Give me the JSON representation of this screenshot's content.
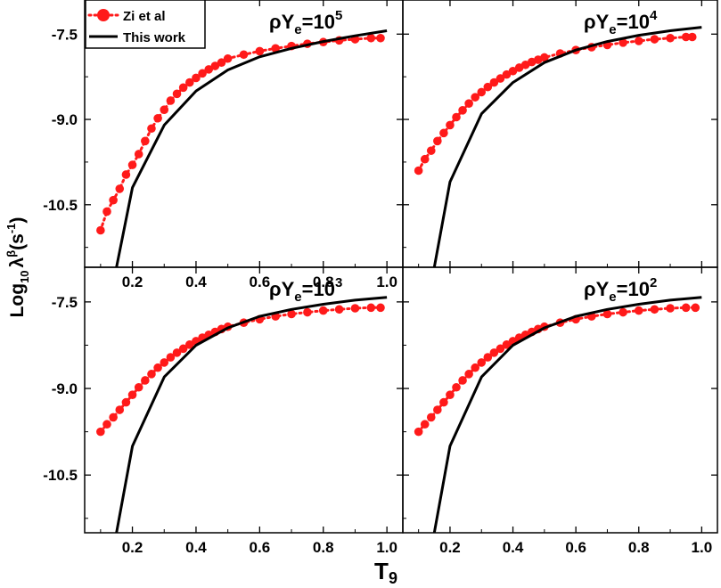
{
  "figure": {
    "xlabel_main": "T",
    "xlabel_sub": "9",
    "ylabel_main": "Log",
    "ylabel_sub": "10",
    "ylabel_symbol": "λ",
    "ylabel_sup": "β",
    "ylabel_unit_open": "(s",
    "ylabel_unit_sup": "-1",
    "ylabel_unit_close": ")",
    "colors": {
      "zi": "#ff1a1a",
      "this_work": "#000000",
      "frame": "#000000"
    }
  },
  "legend": {
    "placement": "top-left of first panel",
    "entries": [
      {
        "label": "Zi et al",
        "style": "red dotted line with circles"
      },
      {
        "label": "This work",
        "style": "black solid line"
      }
    ]
  },
  "chart_data": [
    {
      "type": "line",
      "panel": "top-left",
      "label_prefix": "ρY",
      "label_sub": "e",
      "label_mid": "=10",
      "label_sup": "5",
      "xlim": [
        0.05,
        1.05
      ],
      "ylim": [
        -11.6,
        -6.9
      ],
      "xticks": [
        "0.2",
        "0.4",
        "0.6",
        "0.8",
        "1.0"
      ],
      "yticks": [
        "-7.5",
        "-9.0",
        "-10.5"
      ],
      "series": [
        {
          "name": "Zi et al",
          "x": [
            0.1,
            0.12,
            0.14,
            0.16,
            0.18,
            0.2,
            0.22,
            0.24,
            0.26,
            0.28,
            0.3,
            0.32,
            0.34,
            0.36,
            0.38,
            0.4,
            0.42,
            0.44,
            0.46,
            0.48,
            0.5,
            0.55,
            0.6,
            0.65,
            0.7,
            0.75,
            0.8,
            0.85,
            0.9,
            0.95,
            0.98
          ],
          "y": [
            -10.95,
            -10.62,
            -10.42,
            -10.22,
            -9.97,
            -9.8,
            -9.61,
            -9.38,
            -9.16,
            -8.98,
            -8.83,
            -8.67,
            -8.55,
            -8.44,
            -8.35,
            -8.27,
            -8.19,
            -8.12,
            -8.06,
            -8.0,
            -7.93,
            -7.86,
            -7.8,
            -7.75,
            -7.71,
            -7.67,
            -7.64,
            -7.61,
            -7.59,
            -7.57,
            -7.57
          ]
        },
        {
          "name": "This work",
          "x": [
            0.15,
            0.2,
            0.3,
            0.4,
            0.5,
            0.6,
            0.7,
            0.8,
            0.9,
            1.0
          ],
          "y": [
            -11.6,
            -10.2,
            -9.1,
            -8.5,
            -8.13,
            -7.9,
            -7.75,
            -7.63,
            -7.53,
            -7.44
          ]
        }
      ]
    },
    {
      "type": "line",
      "panel": "top-right",
      "label_prefix": "ρY",
      "label_sub": "e",
      "label_mid": "=10",
      "label_sup": "4",
      "xlim": [
        0.05,
        1.05
      ],
      "ylim": [
        -11.6,
        -6.9
      ],
      "xticks": [],
      "yticks": [],
      "series": [
        {
          "name": "Zi et al",
          "x": [
            0.1,
            0.12,
            0.14,
            0.16,
            0.18,
            0.2,
            0.22,
            0.24,
            0.26,
            0.28,
            0.3,
            0.32,
            0.34,
            0.36,
            0.38,
            0.4,
            0.42,
            0.44,
            0.46,
            0.48,
            0.5,
            0.55,
            0.6,
            0.65,
            0.7,
            0.75,
            0.8,
            0.85,
            0.9,
            0.95,
            0.97
          ],
          "y": [
            -9.9,
            -9.7,
            -9.55,
            -9.38,
            -9.24,
            -9.1,
            -8.96,
            -8.84,
            -8.72,
            -8.61,
            -8.52,
            -8.43,
            -8.35,
            -8.28,
            -8.21,
            -8.15,
            -8.09,
            -8.04,
            -7.99,
            -7.95,
            -7.91,
            -7.84,
            -7.78,
            -7.73,
            -7.69,
            -7.65,
            -7.62,
            -7.59,
            -7.57,
            -7.55,
            -7.55
          ]
        },
        {
          "name": "This work",
          "x": [
            0.15,
            0.2,
            0.3,
            0.4,
            0.5,
            0.6,
            0.7,
            0.8,
            0.9,
            1.0
          ],
          "y": [
            -11.6,
            -10.1,
            -8.9,
            -8.35,
            -8.0,
            -7.78,
            -7.63,
            -7.52,
            -7.44,
            -7.38
          ]
        }
      ]
    },
    {
      "type": "line",
      "panel": "bottom-left",
      "label_prefix": "ρY",
      "label_sub": "e",
      "label_mid": "=10",
      "label_sup": "3",
      "xlim": [
        0.05,
        1.05
      ],
      "ylim": [
        -11.5,
        -6.9
      ],
      "xticks": [
        "0.2",
        "0.4",
        "0.6",
        "0.8",
        "1.0"
      ],
      "yticks": [
        "-7.5",
        "-9.0",
        "-10.5"
      ],
      "series": [
        {
          "name": "Zi et al",
          "x": [
            0.1,
            0.12,
            0.14,
            0.16,
            0.18,
            0.2,
            0.22,
            0.24,
            0.26,
            0.28,
            0.3,
            0.32,
            0.34,
            0.36,
            0.38,
            0.4,
            0.42,
            0.44,
            0.46,
            0.48,
            0.5,
            0.55,
            0.6,
            0.65,
            0.7,
            0.75,
            0.8,
            0.85,
            0.9,
            0.95,
            0.98
          ],
          "y": [
            -9.75,
            -9.62,
            -9.5,
            -9.37,
            -9.24,
            -9.11,
            -8.98,
            -8.86,
            -8.75,
            -8.64,
            -8.55,
            -8.46,
            -8.38,
            -8.31,
            -8.24,
            -8.18,
            -8.12,
            -8.07,
            -8.02,
            -7.97,
            -7.93,
            -7.86,
            -7.8,
            -7.75,
            -7.71,
            -7.68,
            -7.65,
            -7.63,
            -7.61,
            -7.6,
            -7.6
          ]
        },
        {
          "name": "This work",
          "x": [
            0.15,
            0.2,
            0.3,
            0.4,
            0.5,
            0.6,
            0.7,
            0.8,
            0.9,
            1.0
          ],
          "y": [
            -11.5,
            -10.0,
            -8.8,
            -8.25,
            -7.95,
            -7.75,
            -7.63,
            -7.54,
            -7.47,
            -7.42
          ]
        }
      ]
    },
    {
      "type": "line",
      "panel": "bottom-right",
      "label_prefix": "ρY",
      "label_sub": "e",
      "label_mid": "=10",
      "label_sup": "2",
      "xlim": [
        0.05,
        1.05
      ],
      "ylim": [
        -11.5,
        -6.9
      ],
      "xticks": [
        "0.2",
        "0.4",
        "0.6",
        "0.8",
        "1.0"
      ],
      "yticks": [],
      "series": [
        {
          "name": "Zi et al",
          "x": [
            0.1,
            0.12,
            0.14,
            0.16,
            0.18,
            0.2,
            0.22,
            0.24,
            0.26,
            0.28,
            0.3,
            0.32,
            0.34,
            0.36,
            0.38,
            0.4,
            0.42,
            0.44,
            0.46,
            0.48,
            0.5,
            0.55,
            0.6,
            0.65,
            0.7,
            0.75,
            0.8,
            0.85,
            0.9,
            0.95,
            0.98
          ],
          "y": [
            -9.75,
            -9.62,
            -9.5,
            -9.37,
            -9.24,
            -9.11,
            -8.98,
            -8.86,
            -8.75,
            -8.64,
            -8.55,
            -8.46,
            -8.38,
            -8.31,
            -8.24,
            -8.18,
            -8.12,
            -8.07,
            -8.02,
            -7.97,
            -7.93,
            -7.86,
            -7.8,
            -7.75,
            -7.71,
            -7.68,
            -7.65,
            -7.63,
            -7.61,
            -7.6,
            -7.6
          ]
        },
        {
          "name": "This work",
          "x": [
            0.15,
            0.2,
            0.3,
            0.4,
            0.5,
            0.6,
            0.7,
            0.8,
            0.9,
            1.0
          ],
          "y": [
            -11.5,
            -10.0,
            -8.8,
            -8.25,
            -7.95,
            -7.75,
            -7.63,
            -7.54,
            -7.47,
            -7.42
          ]
        }
      ]
    }
  ]
}
